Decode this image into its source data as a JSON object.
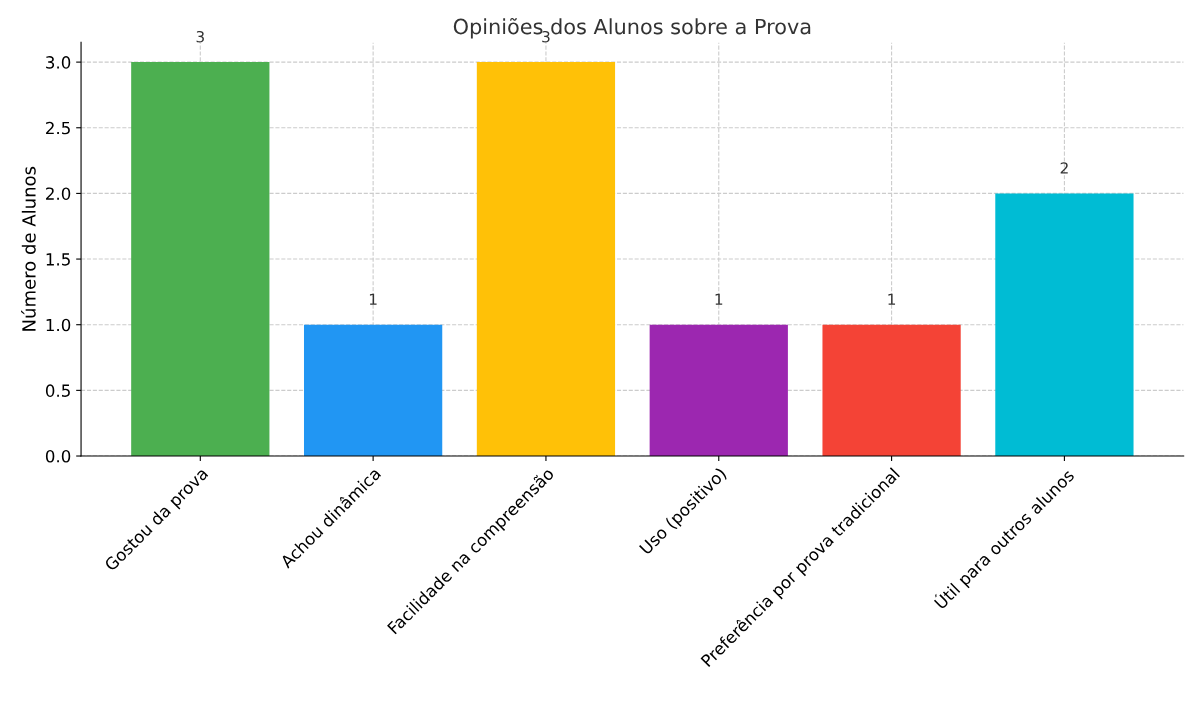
{
  "chart_data": {
    "type": "bar",
    "title": "Opiniões dos Alunos sobre a Prova",
    "ylabel": "Número de Alunos",
    "categories": [
      "Gostou da prova",
      "Achou dinâmica",
      "Facilidade na compreensão",
      "Uso (positivo)",
      "Preferência por prova tradicional",
      "Útil para outros alunos"
    ],
    "values": [
      3,
      1,
      3,
      1,
      1,
      2
    ],
    "colors": [
      "#4caf50",
      "#2196f3",
      "#ffc107",
      "#9c27b0",
      "#f44336",
      "#00bcd4"
    ],
    "ylim": [
      0,
      3.15
    ],
    "yticks": [
      {
        "value": 0,
        "label": "0.0"
      },
      {
        "value": 0.5,
        "label": "0.5"
      },
      {
        "value": 1,
        "label": "1.0"
      },
      {
        "value": 1.5,
        "label": "1.5"
      },
      {
        "value": 2,
        "label": "2.0"
      },
      {
        "value": 2.5,
        "label": "2.5"
      },
      {
        "value": 3,
        "label": "3.0"
      }
    ],
    "grid": true,
    "data_labels": true
  }
}
